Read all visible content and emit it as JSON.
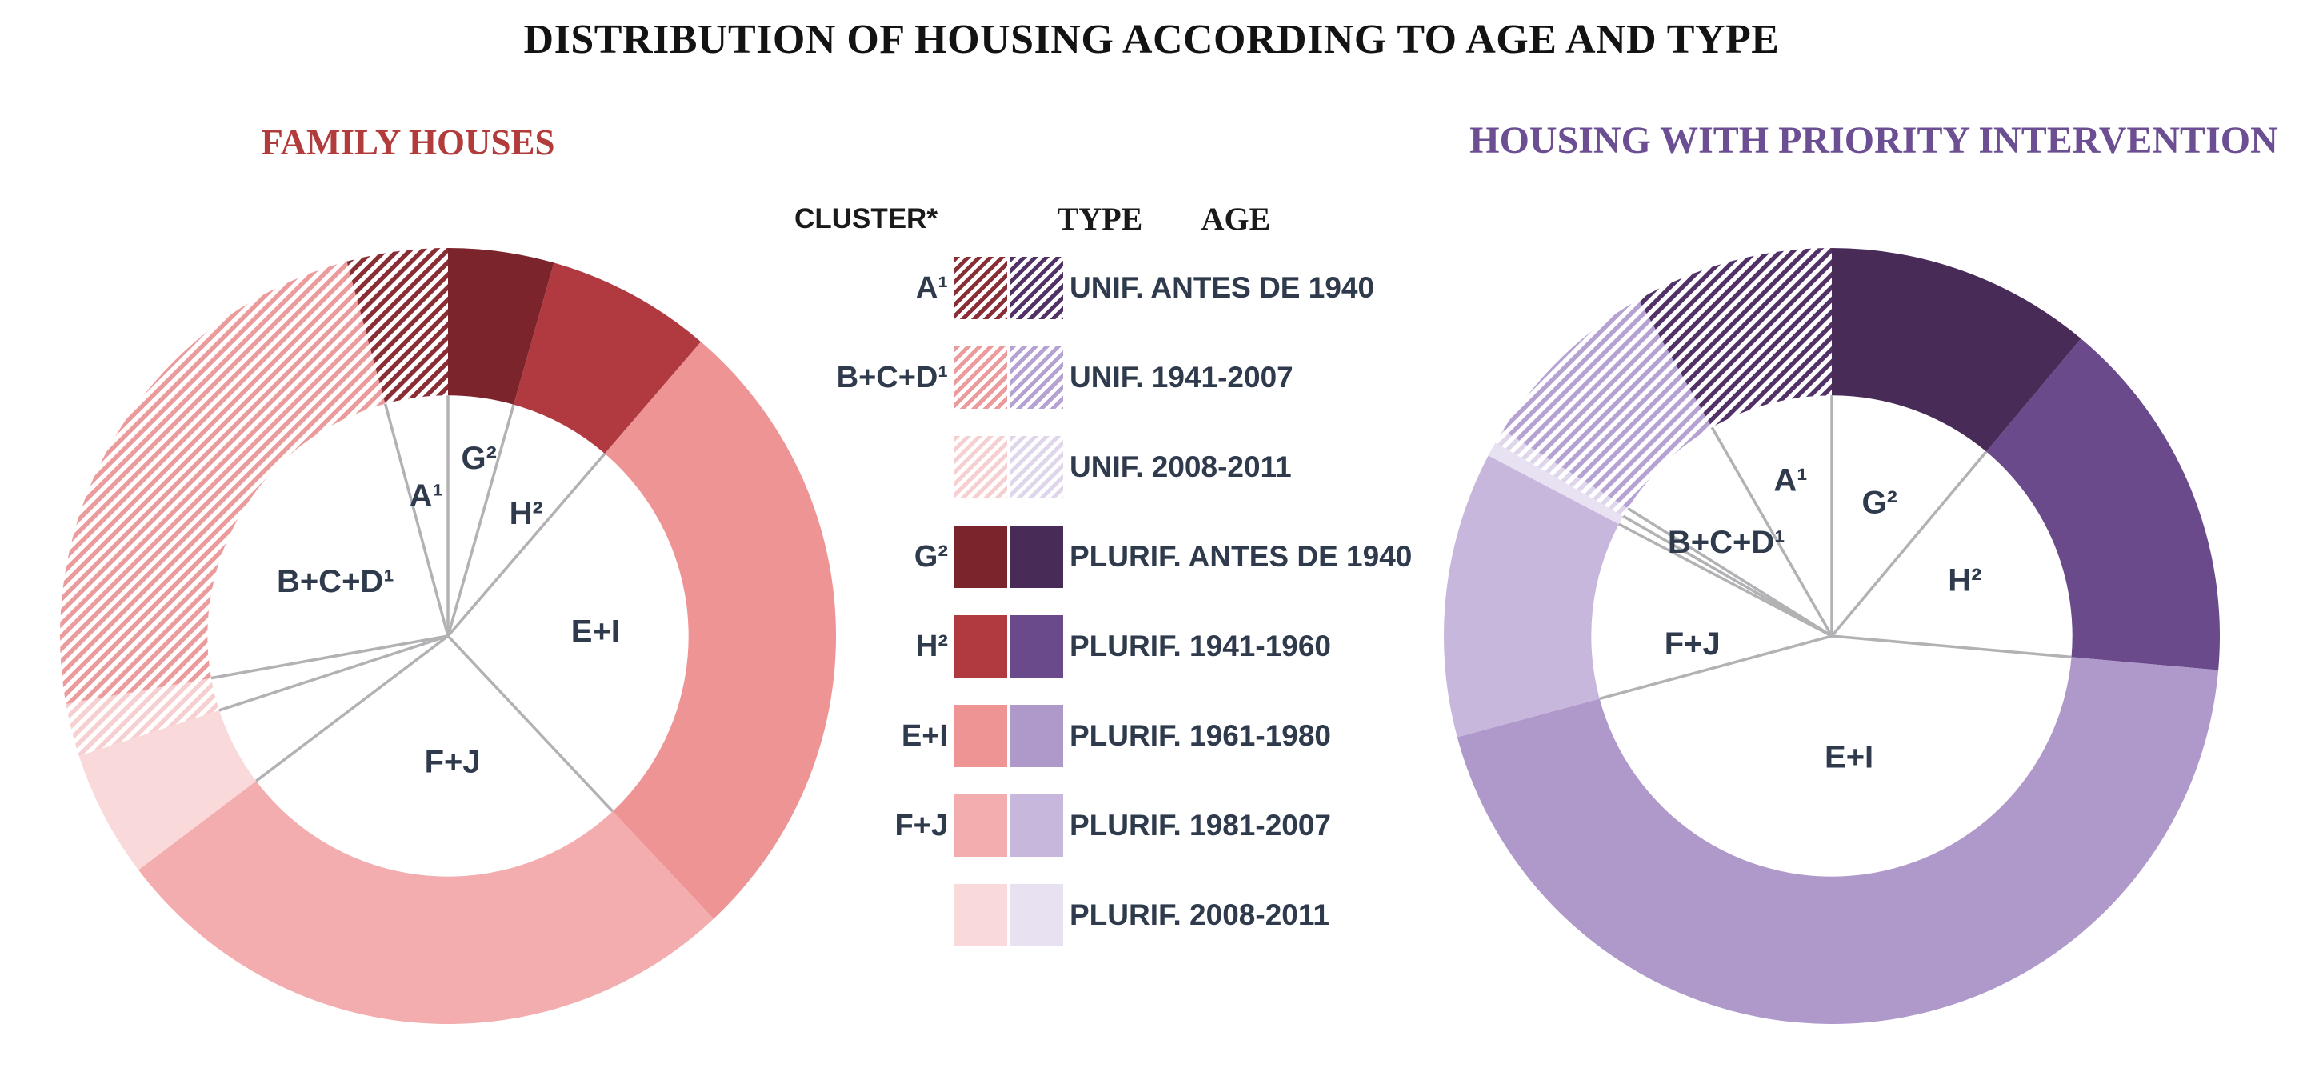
{
  "title": "DISTRIBUTION OF HOUSING ACCORDING TO AGE AND TYPE",
  "left_chart": {
    "header": "FAMILY HOUSES",
    "header_color": "#B23B3C"
  },
  "right_chart": {
    "header": "HOUSING WITH PRIORITY INTERVENTION",
    "header_color": "#6C4E93"
  },
  "palettes": {
    "family": {
      "dark": "#7B242B",
      "medium": "#B13A40",
      "light": "#EE9495",
      "lighter": "#F3ADAE",
      "pale": "#FAD9DA",
      "hatch_dark": "#8A2E35",
      "hatch_light": "#EC9B9D",
      "hatch_pale": "#F6CFD0"
    },
    "priority": {
      "dark": "#492B58",
      "medium": "#6B4A8C",
      "light": "#AF98CA",
      "lighter": "#C8B7DD",
      "pale": "#E8E1F1",
      "hatch_dark": "#513166",
      "hatch_light": "#B5A2D2",
      "hatch_pale": "#DFD6EB"
    }
  },
  "legend": {
    "headers": {
      "cluster": "CLUSTER*",
      "type": "TYPE",
      "age": "AGE"
    },
    "rows": [
      {
        "cluster": "A¹",
        "type": "UNIF.",
        "age": "ANTES DE 1940",
        "tone": "dark",
        "hatched": true
      },
      {
        "cluster": "B+C+D¹",
        "type": "UNIF.",
        "age": "1941-2007",
        "tone": "light",
        "hatched": true
      },
      {
        "cluster": "",
        "type": "UNIF.",
        "age": "2008-2011",
        "tone": "pale",
        "hatched": true
      },
      {
        "cluster": "G²",
        "type": "PLURIF.",
        "age": "ANTES DE 1940",
        "tone": "dark",
        "hatched": false
      },
      {
        "cluster": "H²",
        "type": "PLURIF.",
        "age": "1941-1960",
        "tone": "medium",
        "hatched": false
      },
      {
        "cluster": "E+I",
        "type": "PLURIF.",
        "age": "1961-1980",
        "tone": "light",
        "hatched": false
      },
      {
        "cluster": "F+J",
        "type": "PLURIF.",
        "age": "1981-2007",
        "tone": "lighter",
        "hatched": false
      },
      {
        "cluster": "",
        "type": "PLURIF.",
        "age": "2008-2011",
        "tone": "pale",
        "hatched": false
      }
    ]
  },
  "chart_data": [
    {
      "type": "pie",
      "variant": "donut",
      "name": "family-houses",
      "title": "FAMILY HOUSES",
      "palette": "family",
      "inner_radius_frac": 0.62,
      "start_angle_deg": 0,
      "direction": "clockwise",
      "values_are": "estimated_percent",
      "segments": [
        {
          "cluster": "G²",
          "type": "PLURIF.",
          "age": "ANTES DE 1940",
          "percent": 4.4,
          "tone": "dark",
          "hatched": false,
          "label": {
            "angle_deg": 10,
            "r_frac": 0.46
          }
        },
        {
          "cluster": "H²",
          "type": "PLURIF.",
          "age": "1941-1960",
          "percent": 6.9,
          "tone": "medium",
          "hatched": false,
          "label": {
            "angle_deg": 33,
            "r_frac": 0.37
          }
        },
        {
          "cluster": "E+I",
          "type": "PLURIF.",
          "age": "1961-1980",
          "percent": 26.7,
          "tone": "light",
          "hatched": false,
          "label": {
            "angle_deg": 89,
            "r_frac": 0.38
          }
        },
        {
          "cluster": "F+J",
          "type": "PLURIF.",
          "age": "1981-2007",
          "percent": 26.7,
          "tone": "lighter",
          "hatched": false,
          "label": {
            "angle_deg": 178,
            "r_frac": 0.33
          }
        },
        {
          "cluster": "",
          "type": "PLURIF.",
          "age": "2008-2011",
          "percent": 5.3,
          "tone": "pale",
          "hatched": false
        },
        {
          "cluster": "",
          "type": "UNIF.",
          "age": "2008-2011",
          "percent": 2.2,
          "tone": "pale",
          "hatched": true
        },
        {
          "cluster": "B+C+D¹",
          "type": "UNIF.",
          "age": "1941-2007",
          "percent": 23.6,
          "tone": "light",
          "hatched": true,
          "label": {
            "angle_deg": 295,
            "r_frac": 0.32
          }
        },
        {
          "cluster": "A¹",
          "type": "UNIF.",
          "age": "ANTES DE 1940",
          "percent": 4.2,
          "tone": "dark",
          "hatched": true,
          "label": {
            "angle_deg": 351,
            "r_frac": 0.36
          }
        }
      ]
    },
    {
      "type": "pie",
      "variant": "donut",
      "name": "priority-intervention",
      "title": "HOUSING WITH PRIORITY INTERVENTION",
      "palette": "priority",
      "inner_radius_frac": 0.62,
      "start_angle_deg": 0,
      "direction": "clockwise",
      "values_are": "estimated_percent",
      "segments": [
        {
          "cluster": "G²",
          "type": "PLURIF.",
          "age": "ANTES DE 1940",
          "percent": 11.1,
          "tone": "dark",
          "hatched": false,
          "label": {
            "angle_deg": 20,
            "r_frac": 0.36
          }
        },
        {
          "cluster": "H²",
          "type": "PLURIF.",
          "age": "1941-1960",
          "percent": 15.3,
          "tone": "medium",
          "hatched": false,
          "label": {
            "angle_deg": 68,
            "r_frac": 0.37
          }
        },
        {
          "cluster": "E+I",
          "type": "PLURIF.",
          "age": "1961-1980",
          "percent": 44.4,
          "tone": "light",
          "hatched": false,
          "label": {
            "angle_deg": 172,
            "r_frac": 0.32
          }
        },
        {
          "cluster": "F+J",
          "type": "PLURIF.",
          "age": "1981-2007",
          "percent": 11.9,
          "tone": "lighter",
          "hatched": false,
          "label": {
            "angle_deg": 266,
            "r_frac": 0.36
          }
        },
        {
          "cluster": "",
          "type": "PLURIF.",
          "age": "2008-2011",
          "percent": 0.6,
          "tone": "pale",
          "hatched": false
        },
        {
          "cluster": "",
          "type": "UNIF.",
          "age": "2008-2011",
          "percent": 0.6,
          "tone": "pale",
          "hatched": true
        },
        {
          "cluster": "B+C+D¹",
          "type": "UNIF.",
          "age": "1941-2007",
          "percent": 7.8,
          "tone": "light",
          "hatched": true,
          "label": {
            "angle_deg": 311,
            "r_frac": 0.36
          }
        },
        {
          "cluster": "A¹",
          "type": "UNIF.",
          "age": "ANTES DE 1940",
          "percent": 8.3,
          "tone": "dark",
          "hatched": true,
          "label": {
            "angle_deg": 345,
            "r_frac": 0.41
          }
        }
      ]
    }
  ]
}
